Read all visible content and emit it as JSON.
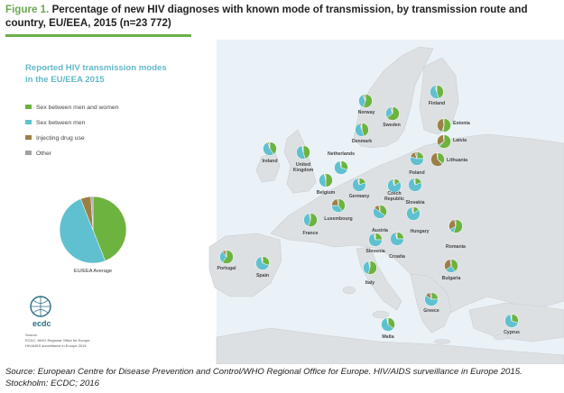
{
  "figure": {
    "label": "Figure 1.",
    "title": "Percentage of new HIV diagnoses with known mode of transmission, by transmission route and country, EU/EEA, 2015 (n=23 772)"
  },
  "map": {
    "heading_line1": "Reported HIV transmission modes",
    "heading_line2": "in the EU/EEA 2015",
    "legend": [
      {
        "label": "Sex between men and women",
        "color": "#6cb33f"
      },
      {
        "label": "Sex between men",
        "color": "#5fc1cf"
      },
      {
        "label": "Injecting drug use",
        "color": "#9c7f45"
      },
      {
        "label": "Other",
        "color": "#a2a2a2"
      }
    ],
    "average_label": "EU/EEA Average",
    "average_shares": [
      0.44,
      0.5,
      0.05,
      0.01
    ],
    "logo_text": "ecdc",
    "logo_source_lines": [
      "Source:",
      "ECDC, WHO Regional Office for Europe.",
      "HIV/AIDS surveillance in Europe 2015"
    ],
    "countries": [
      {
        "name": "Norway",
        "shares": [
          0.55,
          0.38,
          0.03,
          0.04
        ]
      },
      {
        "name": "Sweden",
        "shares": [
          0.65,
          0.3,
          0.03,
          0.02
        ]
      },
      {
        "name": "Finland",
        "shares": [
          0.45,
          0.5,
          0.03,
          0.02
        ]
      },
      {
        "name": "Estonia",
        "shares": [
          0.52,
          0.03,
          0.43,
          0.02
        ]
      },
      {
        "name": "Latvia",
        "shares": [
          0.62,
          0.04,
          0.32,
          0.02
        ]
      },
      {
        "name": "Lithuania",
        "shares": [
          0.35,
          0.03,
          0.6,
          0.02
        ]
      },
      {
        "name": "Denmark",
        "shares": [
          0.45,
          0.5,
          0.03,
          0.02
        ]
      },
      {
        "name": "Ireland",
        "shares": [
          0.4,
          0.55,
          0.03,
          0.02
        ]
      },
      {
        "name": "United Kingdom",
        "shares": [
          0.45,
          0.52,
          0.01,
          0.02
        ]
      },
      {
        "name": "Netherlands",
        "shares": [
          0.3,
          0.67,
          0.01,
          0.02
        ]
      },
      {
        "name": "Belgium",
        "shares": [
          0.5,
          0.46,
          0.01,
          0.03
        ]
      },
      {
        "name": "Germany",
        "shares": [
          0.2,
          0.75,
          0.03,
          0.02
        ]
      },
      {
        "name": "Poland",
        "shares": [
          0.25,
          0.55,
          0.15,
          0.05
        ]
      },
      {
        "name": "Czech Republic",
        "shares": [
          0.15,
          0.8,
          0.03,
          0.02
        ]
      },
      {
        "name": "Slovakia",
        "shares": [
          0.2,
          0.75,
          0.03,
          0.02
        ]
      },
      {
        "name": "Luxembourg",
        "shares": [
          0.4,
          0.35,
          0.22,
          0.03
        ]
      },
      {
        "name": "France",
        "shares": [
          0.55,
          0.42,
          0.01,
          0.02
        ]
      },
      {
        "name": "Austria",
        "shares": [
          0.35,
          0.5,
          0.12,
          0.03
        ]
      },
      {
        "name": "Hungary",
        "shares": [
          0.15,
          0.8,
          0.03,
          0.02
        ]
      },
      {
        "name": "Slovenia",
        "shares": [
          0.25,
          0.7,
          0.03,
          0.02
        ]
      },
      {
        "name": "Croatia",
        "shares": [
          0.25,
          0.7,
          0.03,
          0.02
        ]
      },
      {
        "name": "Romania",
        "shares": [
          0.55,
          0.12,
          0.3,
          0.03
        ]
      },
      {
        "name": "Portugal",
        "shares": [
          0.6,
          0.3,
          0.07,
          0.03
        ]
      },
      {
        "name": "Spain",
        "shares": [
          0.3,
          0.66,
          0.02,
          0.02
        ]
      },
      {
        "name": "Italy",
        "shares": [
          0.55,
          0.41,
          0.02,
          0.02
        ]
      },
      {
        "name": "Bulgaria",
        "shares": [
          0.4,
          0.25,
          0.32,
          0.03
        ]
      },
      {
        "name": "Greece",
        "shares": [
          0.25,
          0.6,
          0.12,
          0.03
        ]
      },
      {
        "name": "Malta",
        "shares": [
          0.35,
          0.62,
          0.01,
          0.02
        ]
      },
      {
        "name": "Cyprus",
        "shares": [
          0.3,
          0.67,
          0.01,
          0.02
        ]
      }
    ]
  },
  "source": "Source: European Centre for Disease Prevention and Control/WHO Regional Office for Europe. HIV/AIDS surveillance in Europe 2015. Stockholm: ECDC; 2016"
}
